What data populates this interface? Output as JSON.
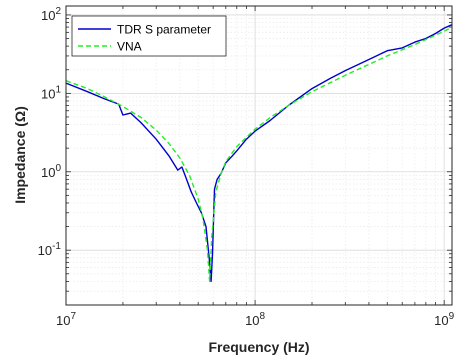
{
  "chart_data": {
    "type": "line",
    "xlabel": "Frequency (Hz)",
    "ylabel": "Impedance  (Ω)",
    "x_scale": "log",
    "y_scale": "log",
    "xlim": [
      10000000.0,
      1100000000.0
    ],
    "ylim": [
      0.02,
      130
    ],
    "grid": true,
    "legend_position": "top-left",
    "x_ticks": [
      {
        "value": 10000000.0,
        "base": "10",
        "exp": "7"
      },
      {
        "value": 100000000.0,
        "base": "10",
        "exp": "8"
      },
      {
        "value": 1000000000.0,
        "base": "10",
        "exp": "9"
      }
    ],
    "y_ticks": [
      {
        "value": 0.1,
        "base": "10",
        "exp": "-1"
      },
      {
        "value": 1,
        "base": "10",
        "exp": "0"
      },
      {
        "value": 10,
        "base": "10",
        "exp": "1"
      },
      {
        "value": 100,
        "base": "10",
        "exp": "2"
      }
    ],
    "series": [
      {
        "name": "TDR S parameter",
        "color": "#0000cc",
        "style": "solid",
        "x": [
          10000000.0,
          13000000.0,
          16000000.0,
          19000000.0,
          20000000.0,
          22000000.0,
          25000000.0,
          30000000.0,
          35000000.0,
          39000000.0,
          41000000.0,
          43000000.0,
          46000000.0,
          49000000.0,
          52000000.0,
          55000000.0,
          57500000.0,
          58500000.0,
          59500000.0,
          61000000.0,
          63000000.0,
          66000000.0,
          70000000.0,
          75000000.0,
          80000000.0,
          90000000.0,
          100000000.0,
          120000000.0,
          150000000.0,
          200000000.0,
          250000000.0,
          300000000.0,
          400000000.0,
          500000000.0,
          600000000.0,
          700000000.0,
          800000000.0,
          900000000.0,
          1000000000.0,
          1100000000.0
        ],
        "y": [
          13.5,
          10.5,
          8.5,
          7.3,
          5.3,
          5.6,
          4.2,
          2.6,
          1.6,
          1.05,
          1.15,
          0.85,
          0.55,
          0.4,
          0.3,
          0.2,
          0.07,
          0.04,
          0.09,
          0.6,
          0.8,
          0.95,
          1.3,
          1.55,
          1.85,
          2.6,
          3.3,
          4.5,
          7.0,
          11.5,
          15.5,
          19.5,
          27.0,
          35.0,
          38.0,
          45.0,
          50.0,
          58.0,
          68.0,
          75.0
        ]
      },
      {
        "name": "VNA",
        "color": "#22ee22",
        "style": "dashed",
        "x": [
          10000000.0,
          13000000.0,
          16000000.0,
          20000000.0,
          25000000.0,
          30000000.0,
          35000000.0,
          40000000.0,
          45000000.0,
          50000000.0,
          53000000.0,
          56000000.0,
          57500000.0,
          59000000.0,
          62000000.0,
          66000000.0,
          70000000.0,
          80000000.0,
          100000000.0,
          120000000.0,
          150000000.0,
          200000000.0,
          300000000.0,
          500000000.0,
          700000000.0,
          1000000000.0,
          1100000000.0
        ],
        "y": [
          14.5,
          11.5,
          9.0,
          6.8,
          4.9,
          3.4,
          2.3,
          1.5,
          0.9,
          0.45,
          0.25,
          0.1,
          0.04,
          0.15,
          0.55,
          0.95,
          1.35,
          2.1,
          3.5,
          4.9,
          7.0,
          10.5,
          17.0,
          30.0,
          42.0,
          62.0,
          70.0
        ]
      }
    ]
  }
}
